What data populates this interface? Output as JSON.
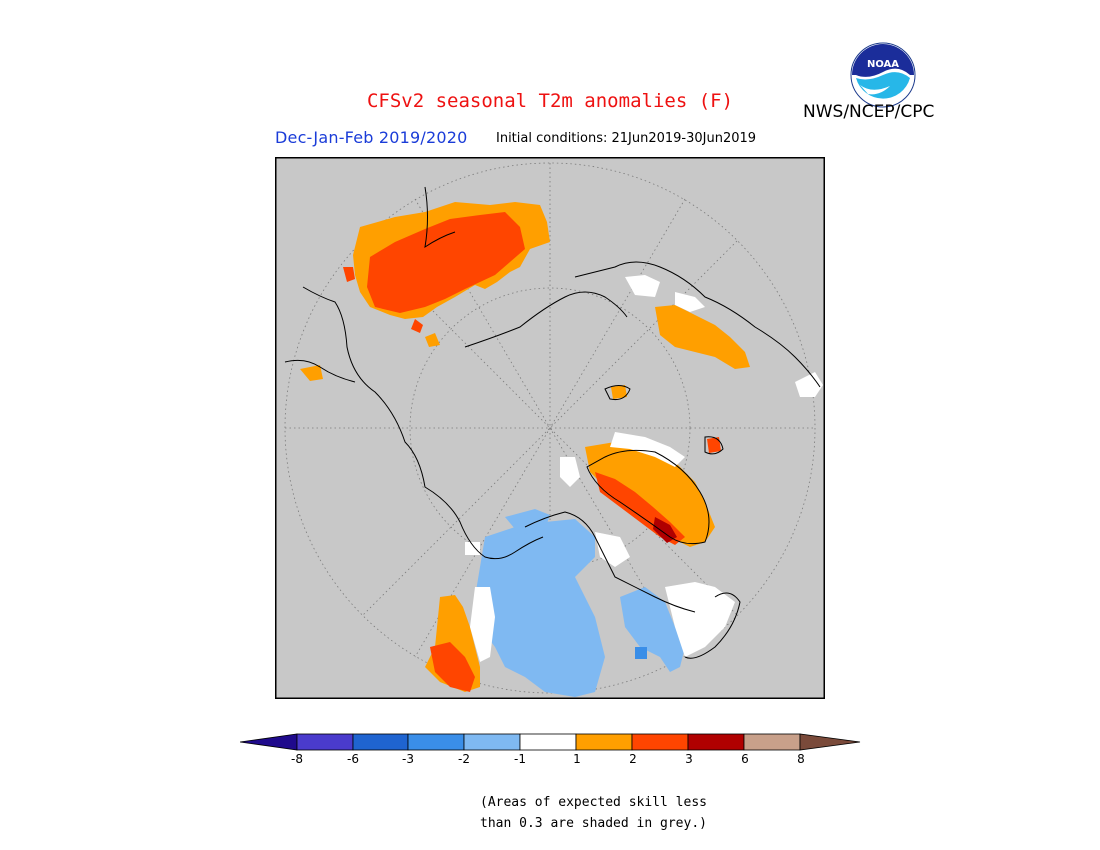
{
  "header": {
    "title": "CFSv2 seasonal T2m anomalies (F)",
    "agency": "NWS/NCEP/CPC",
    "season": "Dec-Jan-Feb 2019/2020",
    "initial_conditions": "Initial conditions: 21Jun2019-30Jun2019",
    "logo_text": "NOAA"
  },
  "legend": {
    "tick_labels": [
      "-8",
      "-6",
      "-3",
      "-2",
      "-1",
      "1",
      "2",
      "3",
      "6",
      "8"
    ],
    "colors": [
      "#1f0a8c",
      "#4a3bcc",
      "#1f64d0",
      "#3a8ee8",
      "#7fb9f2",
      "#ffffff",
      "#ff9f00",
      "#ff4500",
      "#b00000",
      "#c8a08a",
      "#7a4a3a"
    ],
    "note_line1": "(Areas of expected skill less",
    "note_line2": "than 0.3 are shaded in grey.)"
  },
  "map": {
    "projection": "north polar stereographic",
    "background": "#c8c8c8",
    "grey_meaning": "low skill"
  }
}
